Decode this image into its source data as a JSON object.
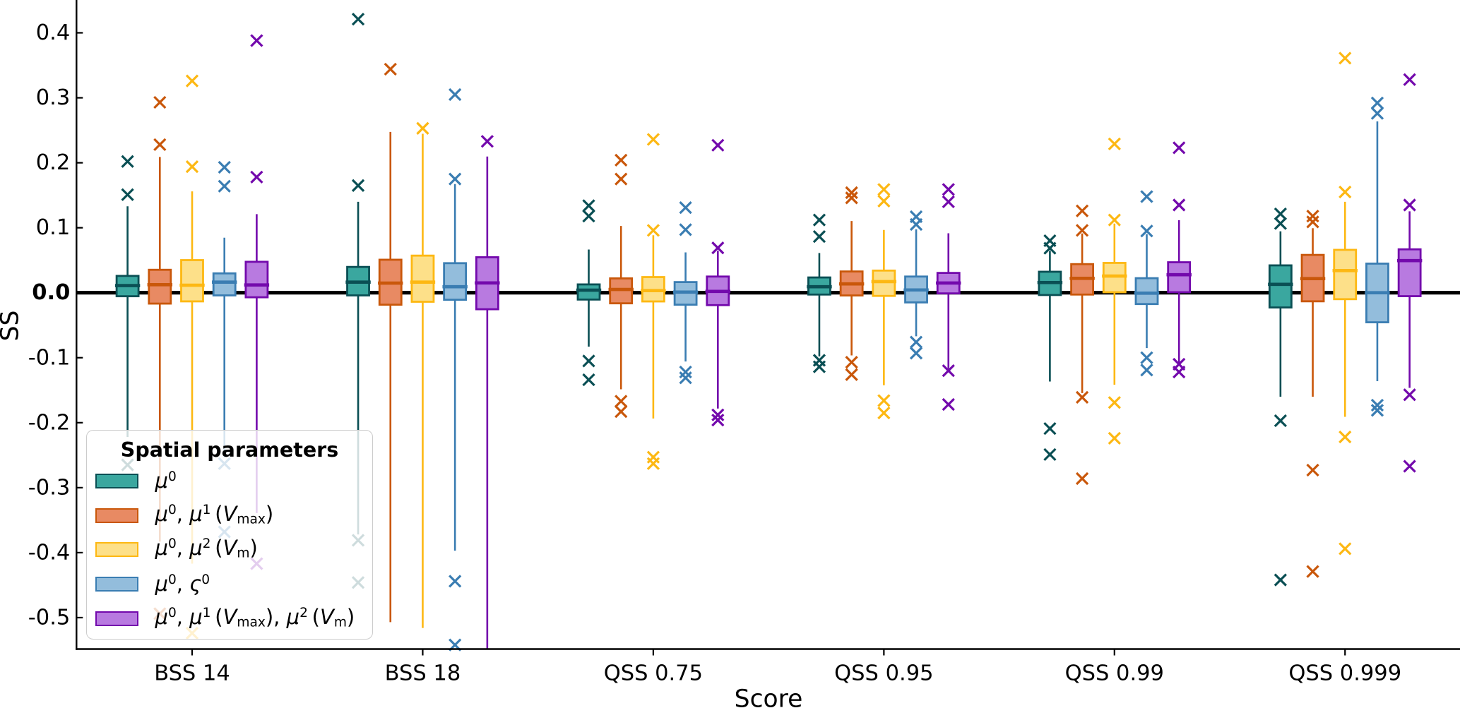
{
  "chart_data": {
    "type": "box",
    "title": "",
    "xlabel": "Score",
    "ylabel": "SS",
    "grid": false,
    "ylim": [
      -0.5484,
      0.4505
    ],
    "zero_line": {
      "value": 0.0,
      "color": "#000000"
    },
    "y_ticks": [
      {
        "value": 0.4,
        "label": "0.4",
        "bold": false
      },
      {
        "value": 0.3,
        "label": "0.3",
        "bold": false
      },
      {
        "value": 0.2,
        "label": "0.2",
        "bold": false
      },
      {
        "value": 0.1,
        "label": "0.1",
        "bold": false
      },
      {
        "value": 0.0,
        "label": "0.0",
        "bold": true
      },
      {
        "value": -0.1,
        "label": "-0.1",
        "bold": false
      },
      {
        "value": -0.2,
        "label": "-0.2",
        "bold": false
      },
      {
        "value": -0.3,
        "label": "-0.3",
        "bold": false
      },
      {
        "value": -0.4,
        "label": "-0.4",
        "bold": false
      },
      {
        "value": -0.5,
        "label": "-0.5",
        "bold": false
      }
    ],
    "categories": [
      "BSS 14",
      "BSS 18",
      "QSS 0.75",
      "QSS 0.95",
      "QSS 0.99",
      "QSS 0.999"
    ],
    "legend": {
      "title": "Spatial parameters",
      "position": "lower left"
    },
    "series": [
      {
        "label_text": "μ⁰",
        "label_segments": [
          {
            "t": "μ",
            "it": 1
          },
          {
            "t": "0",
            "sup": 1
          }
        ],
        "edge_color": "#0a4f54",
        "fill_color": "#3aa79f",
        "boxes": [
          {
            "whisker_low": -0.222,
            "q1": -0.0054,
            "median": 0.011,
            "q3": 0.0259,
            "whisker_high": 0.133,
            "outliers": [
              0.202,
              0.151,
              -0.265
            ]
          },
          {
            "whisker_low": -0.372,
            "q1": -0.0041,
            "median": 0.0163,
            "q3": 0.0397,
            "whisker_high": 0.14,
            "outliers": [
              0.421,
              0.165,
              -0.381,
              -0.446
            ]
          },
          {
            "whisker_low": -0.083,
            "q1": -0.0105,
            "median": 0.004,
            "q3": 0.0128,
            "whisker_high": 0.0665,
            "outliers": [
              0.134,
              0.118,
              -0.105,
              -0.134
            ]
          },
          {
            "whisker_low": -0.098,
            "q1": -0.0028,
            "median": 0.0092,
            "q3": 0.0235,
            "whisker_high": 0.0611,
            "outliers": [
              0.112,
              0.0865,
              -0.104,
              -0.114
            ]
          },
          {
            "whisker_low": -0.1366,
            "q1": -0.0035,
            "median": 0.0157,
            "q3": 0.0323,
            "whisker_high": 0.0645,
            "outliers": [
              0.0801,
              0.0685,
              -0.209,
              -0.249
            ]
          },
          {
            "whisker_low": -0.16,
            "q1": -0.0227,
            "median": 0.0129,
            "q3": 0.0421,
            "whisker_high": 0.0945,
            "outliers": [
              0.1214,
              0.1065,
              -0.197,
              -0.442
            ]
          }
        ]
      },
      {
        "label_text": "μ⁰, μ¹ (Vmax)",
        "label_segments": [
          {
            "t": "μ",
            "it": 1
          },
          {
            "t": "0",
            "sup": 1
          },
          {
            "t": ", "
          },
          {
            "t": "μ",
            "it": 1
          },
          {
            "t": "1",
            "sup": 1
          },
          {
            "t": " ("
          },
          {
            "t": "V",
            "it": 1
          },
          {
            "t": "max",
            "sub": 1
          },
          {
            "t": ")"
          }
        ],
        "edge_color": "#c9570a",
        "fill_color": "#e88a63",
        "boxes": [
          {
            "whisker_low": -0.383,
            "q1": -0.0167,
            "median": 0.0124,
            "q3": 0.0353,
            "whisker_high": 0.209,
            "outliers": [
              0.293,
              0.228,
              -0.494
            ]
          },
          {
            "whisker_low": -0.507,
            "q1": -0.0184,
            "median": 0.0148,
            "q3": 0.0508,
            "whisker_high": 0.2475,
            "outliers": [
              0.344
            ]
          },
          {
            "whisker_low": -0.1486,
            "q1": -0.0163,
            "median": 0.005,
            "q3": 0.0221,
            "whisker_high": 0.1027,
            "outliers": [
              0.204,
              0.175,
              -0.167,
              -0.183
            ]
          },
          {
            "whisker_low": -0.0965,
            "q1": -0.0042,
            "median": 0.0136,
            "q3": 0.0327,
            "whisker_high": 0.1104,
            "outliers": [
              0.154,
              0.146,
              -0.107,
              -0.126
            ]
          },
          {
            "whisker_low": -0.1544,
            "q1": -0.0028,
            "median": 0.0221,
            "q3": 0.044,
            "whisker_high": 0.0912,
            "outliers": [
              0.126,
              0.096,
              -0.161,
              -0.286
            ]
          },
          {
            "whisker_low": -0.16,
            "q1": -0.0132,
            "median": 0.0217,
            "q3": 0.0582,
            "whisker_high": 0.0993,
            "outliers": [
              0.118,
              0.109,
              -0.273,
              -0.429
            ]
          }
        ]
      },
      {
        "label_text": "μ⁰, μ² (Vm)",
        "label_segments": [
          {
            "t": "μ",
            "it": 1
          },
          {
            "t": "0",
            "sup": 1
          },
          {
            "t": ", "
          },
          {
            "t": "μ",
            "it": 1
          },
          {
            "t": "2",
            "sup": 1
          },
          {
            "t": " ("
          },
          {
            "t": "V",
            "it": 1
          },
          {
            "t": "m",
            "sub": 1
          },
          {
            "t": ")"
          }
        ],
        "edge_color": "#fdb813",
        "fill_color": "#fde089",
        "boxes": [
          {
            "whisker_low": -0.417,
            "q1": -0.0133,
            "median": 0.0116,
            "q3": 0.0502,
            "whisker_high": 0.156,
            "outliers": [
              0.326,
              0.194,
              -0.524
            ]
          },
          {
            "whisker_low": -0.516,
            "q1": -0.0139,
            "median": 0.0163,
            "q3": 0.0571,
            "whisker_high": 0.2446,
            "outliers": [
              0.253
            ]
          },
          {
            "whisker_low": -0.1936,
            "q1": -0.0134,
            "median": 0.0033,
            "q3": 0.0241,
            "whisker_high": 0.0885,
            "outliers": [
              0.236,
              0.096,
              -0.253,
              -0.263
            ]
          },
          {
            "whisker_low": -0.1424,
            "q1": -0.0049,
            "median": 0.0171,
            "q3": 0.0341,
            "whisker_high": 0.0966,
            "outliers": [
              0.159,
              0.141,
              -0.166,
              -0.185
            ]
          },
          {
            "whisker_low": -0.1416,
            "q1": 0.0008,
            "median": 0.0257,
            "q3": 0.0459,
            "whisker_high": 0.1064,
            "outliers": [
              0.229,
              0.112,
              -0.169,
              -0.224
            ]
          },
          {
            "whisker_low": -0.191,
            "q1": -0.0099,
            "median": 0.0341,
            "q3": 0.066,
            "whisker_high": 0.14,
            "outliers": [
              0.361,
              0.155,
              -0.222,
              -0.394
            ]
          }
        ]
      },
      {
        "label_text": "μ⁰, ς⁰",
        "label_segments": [
          {
            "t": "μ",
            "it": 1
          },
          {
            "t": "0",
            "sup": 1
          },
          {
            "t": ", "
          },
          {
            "t": "ς",
            "it": 1
          },
          {
            "t": "0",
            "sup": 1
          }
        ],
        "edge_color": "#3a7db2",
        "fill_color": "#93bddc",
        "boxes": [
          {
            "whisker_low": -0.2535,
            "q1": -0.0041,
            "median": 0.0163,
            "q3": 0.0298,
            "whisker_high": 0.0847,
            "outliers": [
              0.193,
              0.164,
              -0.263,
              -0.368
            ]
          },
          {
            "whisker_low": -0.397,
            "q1": -0.0108,
            "median": 0.0092,
            "q3": 0.0455,
            "whisker_high": 0.1673,
            "outliers": [
              0.305,
              0.175,
              -0.444,
              -0.542
            ]
          },
          {
            "whisker_low": -0.1058,
            "q1": -0.0184,
            "median": 0.001,
            "q3": 0.0164,
            "whisker_high": 0.0621,
            "outliers": [
              0.131,
              0.097,
              -0.122,
              -0.131
            ]
          },
          {
            "whisker_low": -0.067,
            "q1": -0.0149,
            "median": 0.0043,
            "q3": 0.0249,
            "whisker_high": 0.0976,
            "outliers": [
              0.117,
              0.105,
              -0.076,
              -0.093
            ]
          },
          {
            "whisker_low": -0.0852,
            "q1": -0.0174,
            "median": -0.0007,
            "q3": 0.0224,
            "whisker_high": 0.0902,
            "outliers": [
              0.148,
              0.095,
              -0.1,
              -0.119
            ]
          },
          {
            "whisker_low": -0.1361,
            "q1": -0.0455,
            "median": 0.0,
            "q3": 0.0448,
            "whisker_high": 0.2636,
            "outliers": [
              0.292,
              0.276,
              -0.173,
              -0.181
            ]
          }
        ]
      },
      {
        "label_text": "μ⁰, μ¹ (Vmax), μ² (Vm)",
        "label_segments": [
          {
            "t": "μ",
            "it": 1
          },
          {
            "t": "0",
            "sup": 1
          },
          {
            "t": ", "
          },
          {
            "t": "μ",
            "it": 1
          },
          {
            "t": "1",
            "sup": 1
          },
          {
            "t": " ("
          },
          {
            "t": "V",
            "it": 1
          },
          {
            "t": "max",
            "sub": 1
          },
          {
            "t": "), "
          },
          {
            "t": "μ",
            "it": 1
          },
          {
            "t": "2",
            "sup": 1
          },
          {
            "t": " ("
          },
          {
            "t": "V",
            "it": 1
          },
          {
            "t": "m",
            "sub": 1
          },
          {
            "t": ")"
          }
        ],
        "edge_color": "#7309ac",
        "fill_color": "#b87ae0",
        "boxes": [
          {
            "whisker_low": -0.339,
            "q1": -0.007,
            "median": 0.012,
            "q3": 0.0476,
            "whisker_high": 0.121,
            "outliers": [
              0.388,
              0.178,
              -0.417
            ]
          },
          {
            "whisker_low": -0.548,
            "q1": -0.0254,
            "median": 0.0151,
            "q3": 0.0546,
            "whisker_high": 0.2096,
            "outliers": [
              0.233
            ]
          },
          {
            "whisker_low": -0.1782,
            "q1": -0.0191,
            "median": 0.002,
            "q3": 0.0249,
            "whisker_high": 0.0646,
            "outliers": [
              0.227,
              0.069,
              -0.188,
              -0.196
            ]
          },
          {
            "whisker_low": -0.1171,
            "q1": -0.001,
            "median": 0.015,
            "q3": 0.0305,
            "whisker_high": 0.0915,
            "outliers": [
              0.159,
              0.14,
              -0.12,
              -0.172
            ]
          },
          {
            "whisker_low": -0.108,
            "q1": 0.0008,
            "median": 0.0277,
            "q3": 0.0469,
            "whisker_high": 0.1117,
            "outliers": [
              0.223,
              0.135,
              -0.11,
              -0.122
            ]
          },
          {
            "whisker_low": -0.1464,
            "q1": -0.0053,
            "median": 0.0494,
            "q3": 0.0668,
            "whisker_high": 0.1253,
            "outliers": [
              0.328,
              0.135,
              -0.157,
              -0.267
            ]
          }
        ]
      }
    ]
  }
}
